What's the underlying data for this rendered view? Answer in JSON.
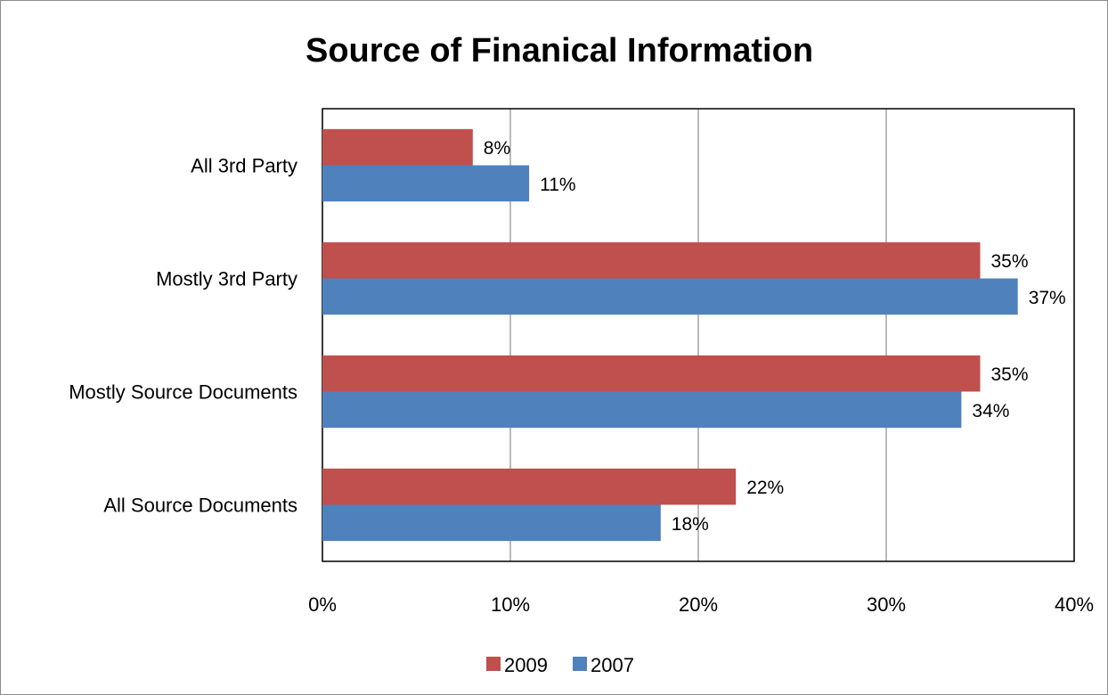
{
  "chart_data": {
    "type": "bar",
    "orientation": "horizontal",
    "title": "Source of Finanical Information",
    "categories": [
      "All 3rd Party",
      "Mostly 3rd Party",
      "Mostly Source Documents",
      "All Source Documents"
    ],
    "series": [
      {
        "name": "2009",
        "color": "#c0504d",
        "values": [
          8,
          35,
          35,
          22
        ]
      },
      {
        "name": "2007",
        "color": "#4f81bd",
        "values": [
          11,
          37,
          34,
          18
        ]
      }
    ],
    "xlim": [
      0,
      40
    ],
    "x_ticks": [
      0,
      10,
      20,
      30,
      40
    ],
    "tick_labels": [
      "0%",
      "10%",
      "20%",
      "30%",
      "40%"
    ],
    "data_labels": [
      [
        "8%",
        "35%",
        "35%",
        "22%"
      ],
      [
        "11%",
        "37%",
        "34%",
        "18%"
      ]
    ],
    "grid": "vertical major gridlines",
    "legend_position": "bottom"
  }
}
